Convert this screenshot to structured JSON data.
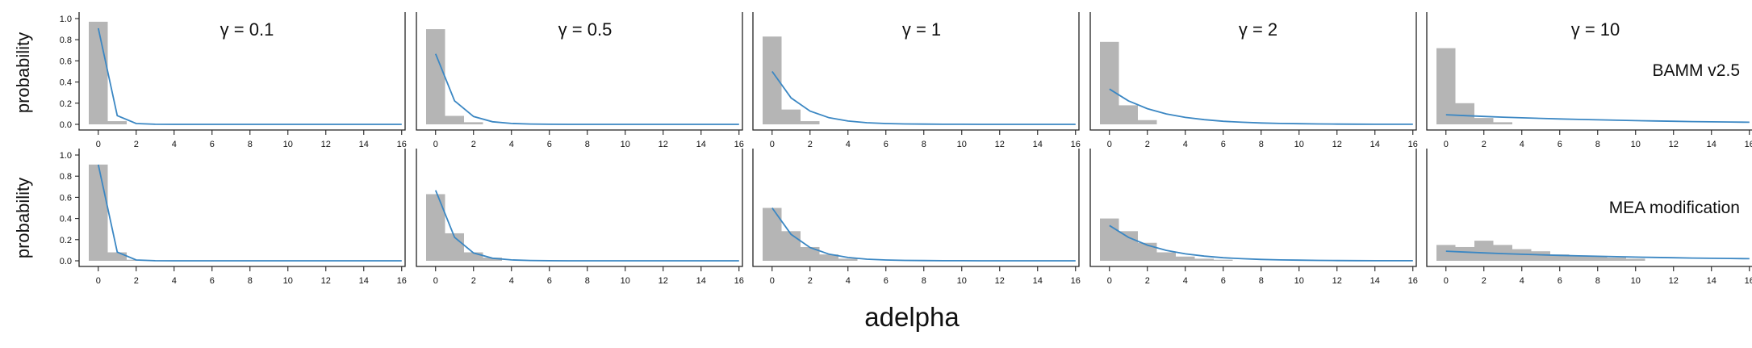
{
  "chart_data": {
    "type": "bar",
    "xlabel": "adelpha",
    "ylabel": "probability",
    "xlim": [
      -0.5,
      16
    ],
    "ylim": [
      0,
      1
    ],
    "x_ticks": [
      0,
      2,
      4,
      6,
      8,
      10,
      12,
      14,
      16
    ],
    "y_ticks": [
      0,
      0.2,
      0.4,
      0.6,
      0.8,
      1
    ],
    "y_tick_labels": [
      "0.0",
      "0.2",
      "0.4",
      "0.6",
      "0.8",
      "1.0"
    ],
    "gammas": [
      "γ = 0.1",
      "γ = 0.5",
      "γ = 1",
      "γ = 2",
      "γ = 10"
    ],
    "gamma_values": [
      0.1,
      0.5,
      1,
      2,
      10
    ],
    "rows": [
      {
        "label": "BAMM v2.5",
        "histograms": [
          [
            0.97,
            0.03
          ],
          [
            0.9,
            0.08,
            0.02
          ],
          [
            0.83,
            0.14,
            0.03
          ],
          [
            0.78,
            0.18,
            0.04
          ],
          [
            0.72,
            0.2,
            0.06,
            0.02
          ]
        ]
      },
      {
        "label": "MEA modification",
        "histograms": [
          [
            0.91,
            0.08,
            0.01
          ],
          [
            0.63,
            0.26,
            0.08,
            0.03
          ],
          [
            0.5,
            0.28,
            0.13,
            0.06,
            0.02
          ],
          [
            0.4,
            0.28,
            0.17,
            0.08,
            0.04,
            0.02,
            0.01
          ],
          [
            0.15,
            0.13,
            0.19,
            0.15,
            0.11,
            0.09,
            0.06,
            0.05,
            0.04,
            0.03,
            0.02
          ]
        ]
      }
    ],
    "curve": "geometric prior P(k) = (1/(1+γ))·(γ/(1+γ))^k",
    "colors": {
      "bar": "#b5b5b5",
      "line": "#3b87c3",
      "axis": "#222222"
    }
  }
}
